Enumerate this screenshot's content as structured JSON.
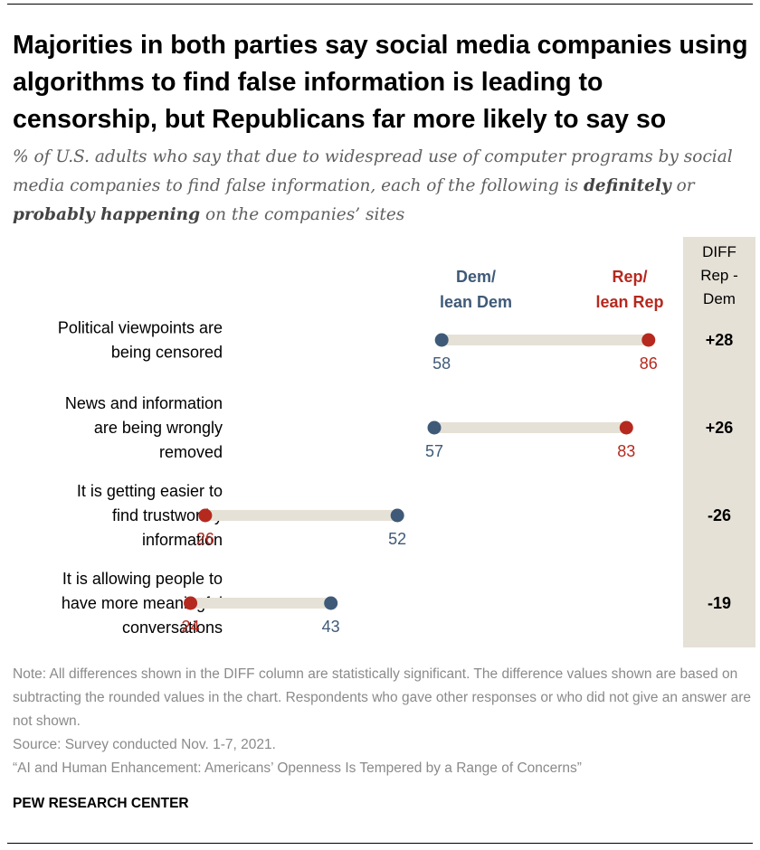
{
  "title": "Majorities in both parties say social media companies using algorithms to find false information is leading to censorship, but Republicans far more likely to say so",
  "subtitle": {
    "pre": "% of U.S. adults who say that due to widespread use of computer programs by social media companies to find false information, each of the following is",
    "bold1": "definitely",
    "mid": "or",
    "bold2": "probably happening",
    "post": "on the companies’ sites"
  },
  "chart_data": {
    "type": "dot-plot",
    "x_range": [
      0,
      100
    ],
    "colors": {
      "dem": "#3f5a78",
      "rep": "#b5291f",
      "bar": "#e6e1d7",
      "diff_column": "#e6e1d7"
    },
    "legend": {
      "dem": [
        "Dem/",
        "lean Dem"
      ],
      "rep": [
        "Rep/",
        "lean Rep"
      ]
    },
    "diff_header": [
      "DIFF",
      "Rep -",
      "Dem"
    ],
    "rows": [
      {
        "label": [
          "Political viewpoints are",
          "being censored"
        ],
        "dem": 58,
        "rep": 86,
        "diff": "+28"
      },
      {
        "label": [
          "News and information",
          "are being wrongly",
          "removed"
        ],
        "dem": 57,
        "rep": 83,
        "diff": "+26"
      },
      {
        "label": [
          "It is getting easier to",
          "find trustworthy",
          "information"
        ],
        "dem": 52,
        "rep": 26,
        "diff": "-26"
      },
      {
        "label": [
          "It is allowing people to",
          "have more meaningful",
          "conversations"
        ],
        "dem": 43,
        "rep": 24,
        "diff": "-19"
      }
    ]
  },
  "notes": {
    "note": "Note: All differences shown in the DIFF column are statistically significant. The difference values shown are based on subtracting the rounded values in the chart. Respondents who gave other responses or who did not give an answer are not shown.",
    "source": "Source: Survey conducted Nov. 1-7, 2021.",
    "report": "“AI and Human Enhancement: Americans’ Openness Is Tempered by a Range of Concerns”"
  },
  "brand": "PEW RESEARCH CENTER"
}
